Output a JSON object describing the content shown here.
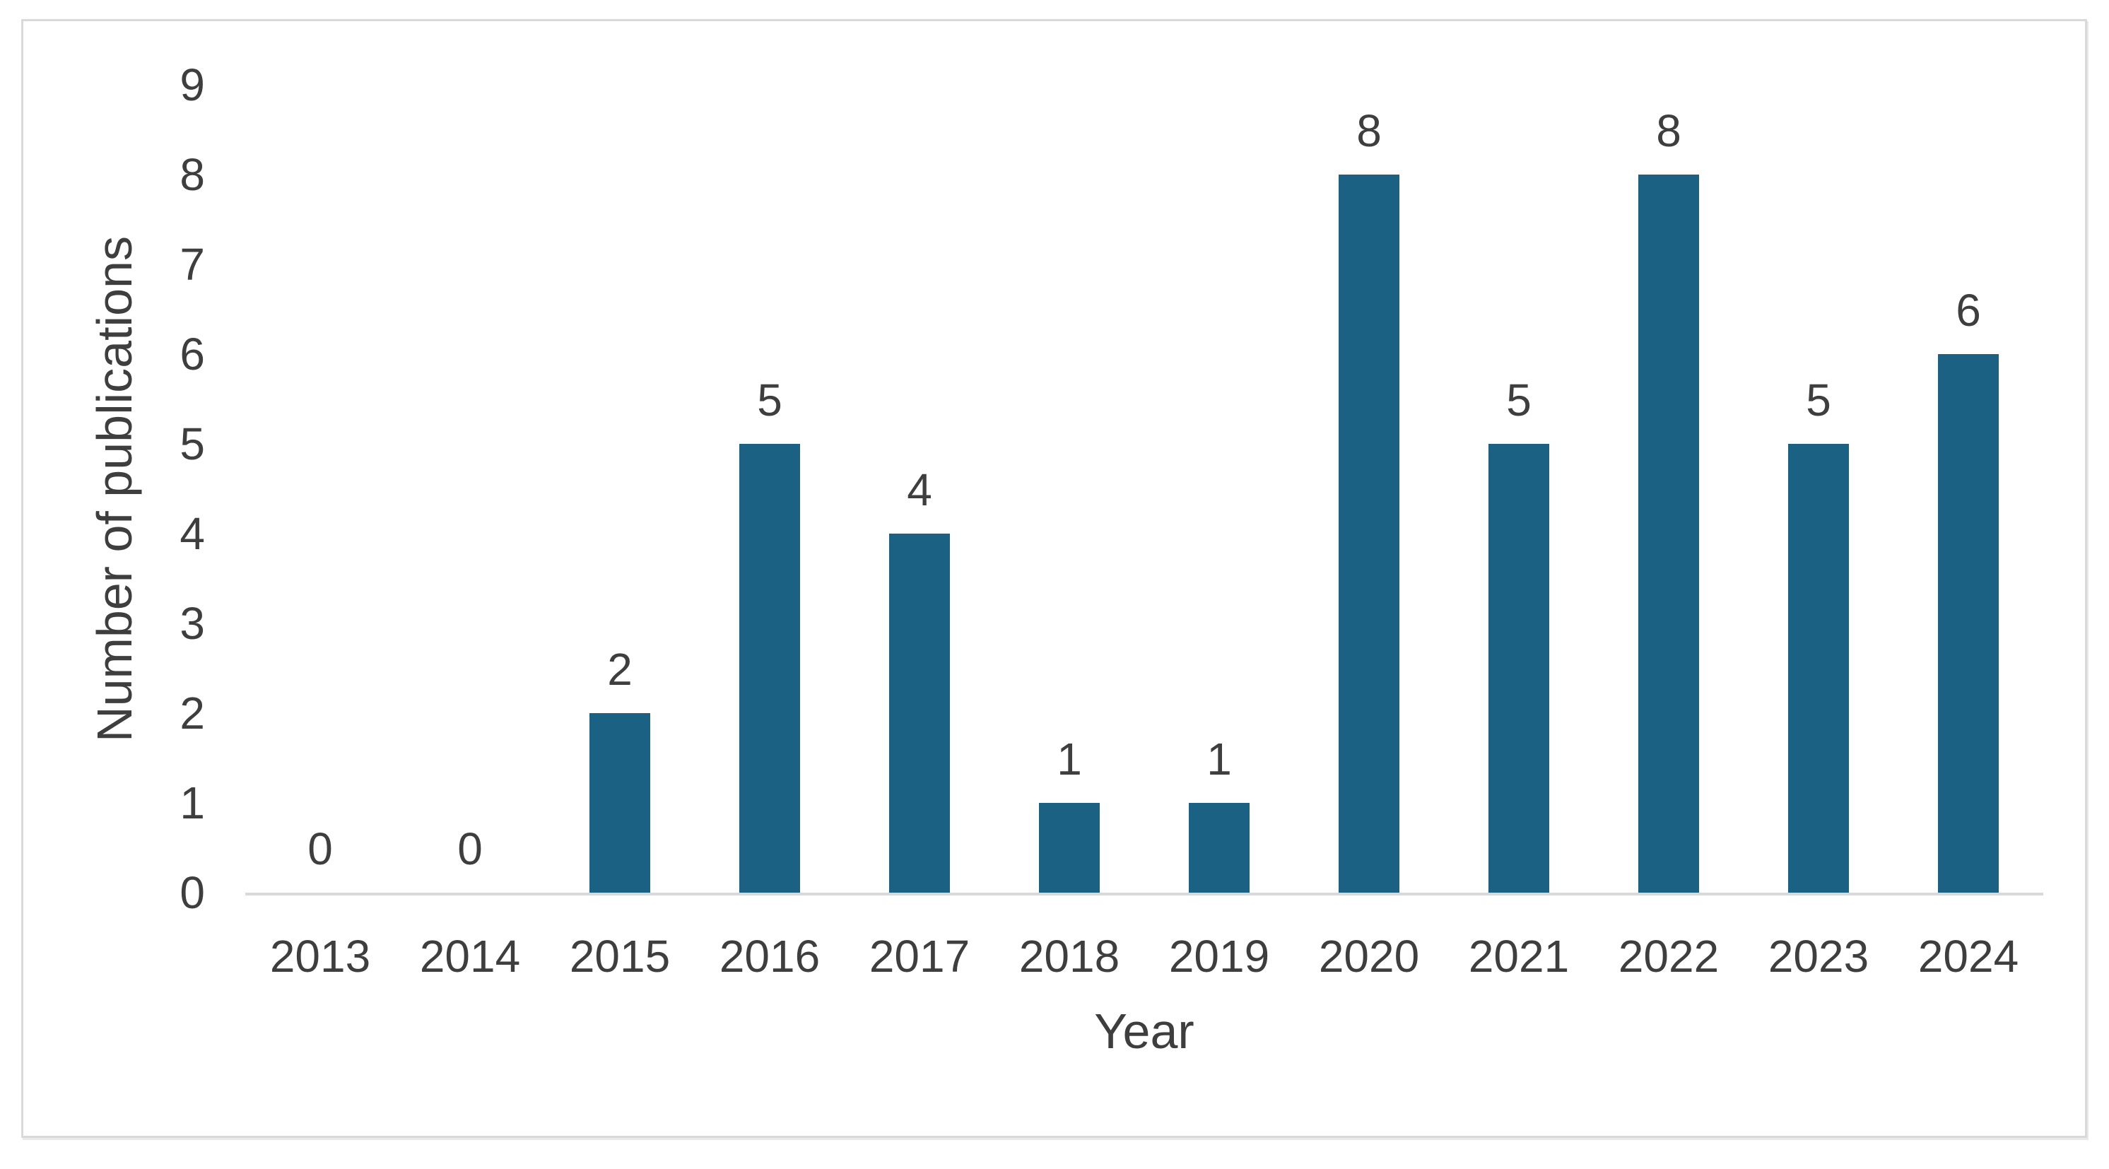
{
  "frame": {
    "background": "#ffffff",
    "border_color": "#d9d9d9"
  },
  "chart_data": {
    "type": "bar",
    "categories": [
      "2013",
      "2014",
      "2015",
      "2016",
      "2017",
      "2018",
      "2019",
      "2020",
      "2021",
      "2022",
      "2023",
      "2024"
    ],
    "values": [
      0,
      0,
      2,
      5,
      4,
      1,
      1,
      8,
      5,
      8,
      5,
      6
    ],
    "title": "",
    "xlabel": "Year",
    "ylabel": "Number of publications",
    "ylim": [
      0,
      9
    ],
    "yticks": [
      0,
      1,
      2,
      3,
      4,
      5,
      6,
      7,
      8,
      9
    ],
    "grid": "off",
    "legend": "none",
    "data_labels": "outside-end",
    "bar_color": "#1b6183",
    "axis_line_color": "#d9d9d9",
    "text_color": "#3e3e3e"
  }
}
